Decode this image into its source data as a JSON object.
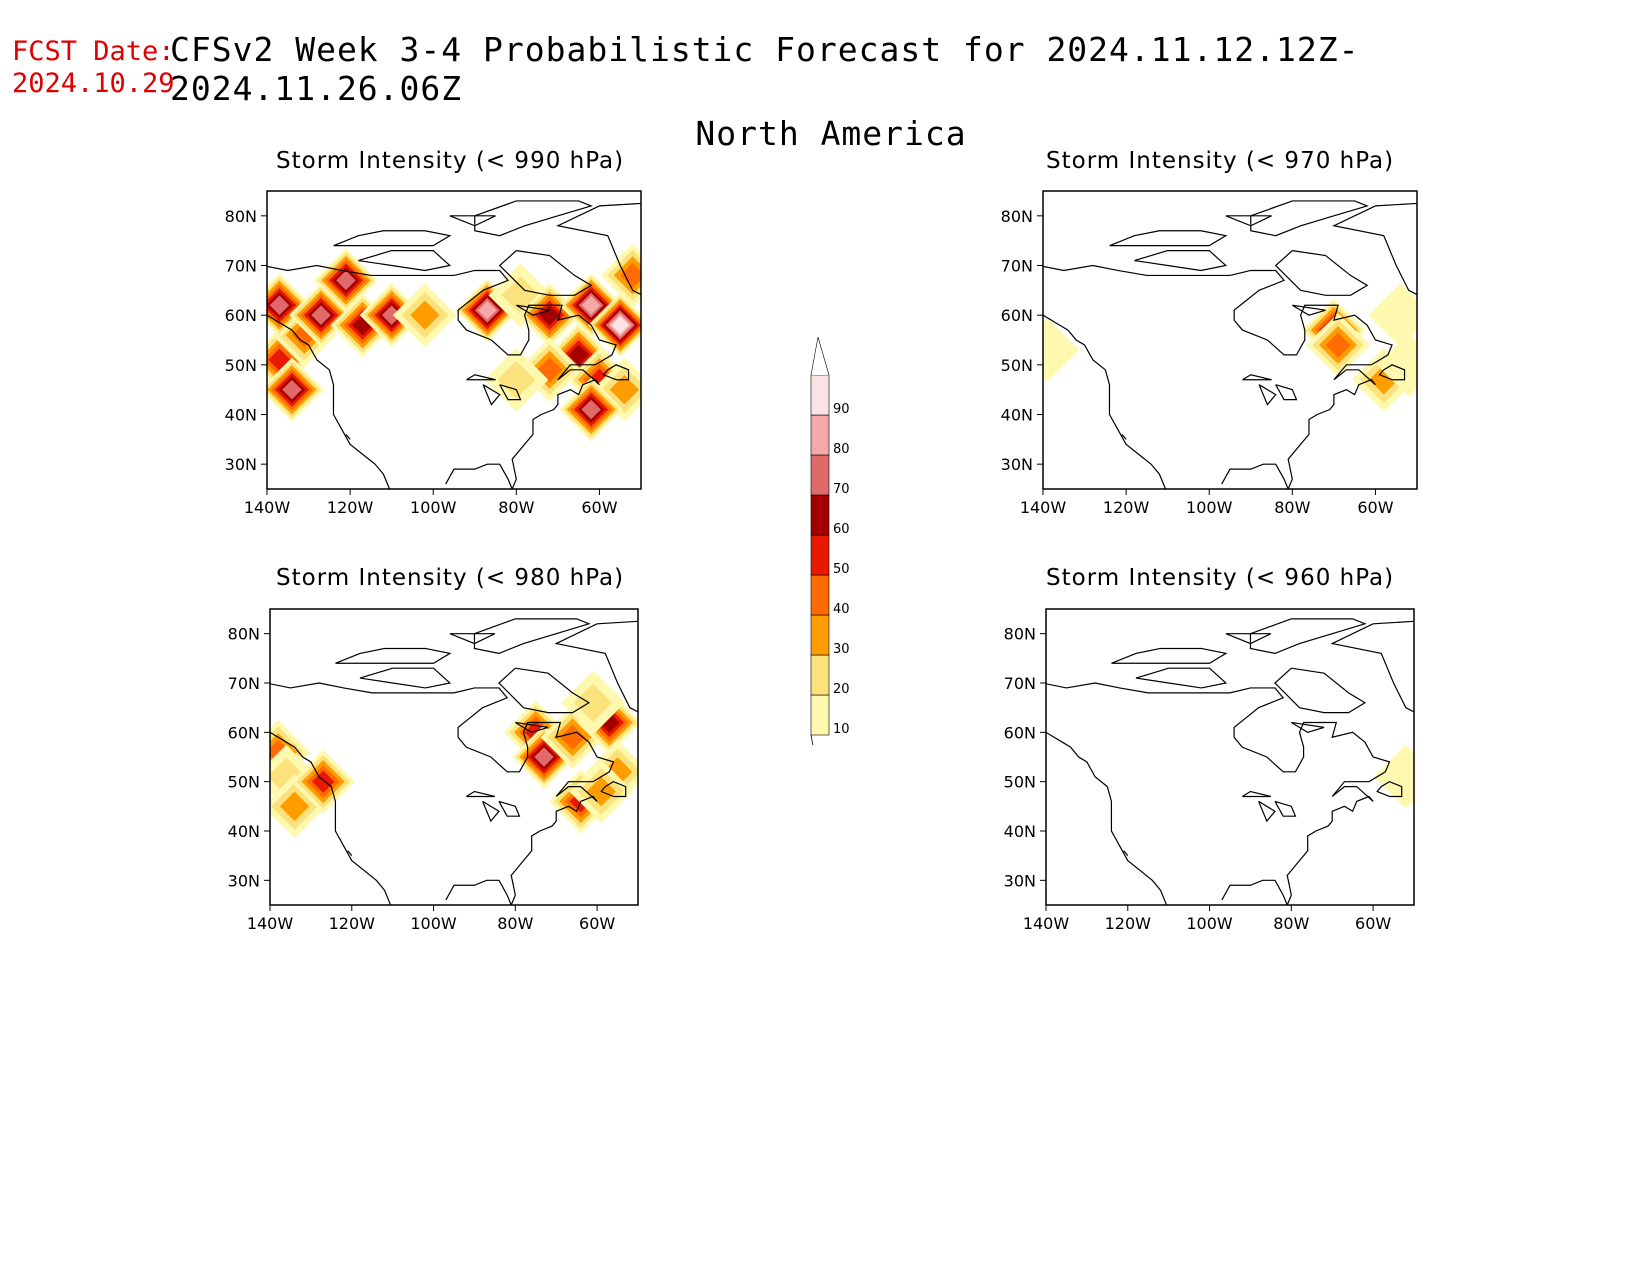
{
  "header": {
    "fcst_label": "FCST Date:",
    "fcst_value": "2024.10.29",
    "title": "CFSv2 Week 3-4 Probabilistic Forecast for 2024.11.12.12Z-2024.11.26.06Z",
    "region": "North America"
  },
  "panels": [
    {
      "title": "Storm Intensity (< 990 hPa)",
      "lat_ticks": [
        "80N",
        "70N",
        "60N",
        "50N",
        "40N",
        "30N"
      ],
      "lon_ticks": [
        "140W",
        "120W",
        "100W",
        "80W",
        "60W"
      ],
      "blobs": [
        {
          "lon": -137,
          "lat": 51,
          "p": 55
        },
        {
          "lon": -134,
          "lat": 45,
          "p": 75
        },
        {
          "lon": -131,
          "lat": 56,
          "p": 45
        },
        {
          "lon": -137,
          "lat": 62,
          "p": 70
        },
        {
          "lon": -127,
          "lat": 60,
          "p": 75
        },
        {
          "lon": -121,
          "lat": 67,
          "p": 75
        },
        {
          "lon": -117,
          "lat": 58,
          "p": 65
        },
        {
          "lon": -110,
          "lat": 60,
          "p": 70
        },
        {
          "lon": -102,
          "lat": 60,
          "p": 30
        },
        {
          "lon": -87,
          "lat": 61,
          "p": 80
        },
        {
          "lon": -79,
          "lat": 64,
          "p": 25
        },
        {
          "lon": -72,
          "lat": 60,
          "p": 60
        },
        {
          "lon": -62,
          "lat": 62,
          "p": 85
        },
        {
          "lon": -55,
          "lat": 58,
          "p": 90
        },
        {
          "lon": -65,
          "lat": 52,
          "p": 60
        },
        {
          "lon": -72,
          "lat": 49,
          "p": 45
        },
        {
          "lon": -60,
          "lat": 47,
          "p": 55
        },
        {
          "lon": -54,
          "lat": 45,
          "p": 35
        },
        {
          "lon": -62,
          "lat": 41,
          "p": 70
        },
        {
          "lon": -80,
          "lat": 47,
          "p": 25
        },
        {
          "lon": -52,
          "lat": 68,
          "p": 40
        }
      ]
    },
    {
      "title": "Storm Intensity (< 970 hPa)",
      "lat_ticks": [
        "80N",
        "70N",
        "60N",
        "50N",
        "40N",
        "30N"
      ],
      "lon_ticks": [
        "140W",
        "120W",
        "100W",
        "80W",
        "60W"
      ],
      "blobs": [
        {
          "lon": -70,
          "lat": 57,
          "p": 60
        },
        {
          "lon": -69,
          "lat": 54,
          "p": 45
        },
        {
          "lon": -58,
          "lat": 47,
          "p": 30
        },
        {
          "lon": -54,
          "lat": 60,
          "p": 15
        },
        {
          "lon": -52,
          "lat": 50,
          "p": 12
        },
        {
          "lon": -139,
          "lat": 53,
          "p": 10
        }
      ]
    },
    {
      "title": "Storm Intensity (< 980 hPa)",
      "lat_ticks": [
        "80N",
        "70N",
        "60N",
        "50N",
        "40N",
        "30N"
      ],
      "lon_ticks": [
        "140W",
        "120W",
        "100W",
        "80W",
        "60W"
      ],
      "blobs": [
        {
          "lon": -138,
          "lat": 56,
          "p": 45
        },
        {
          "lon": -136,
          "lat": 51,
          "p": 20
        },
        {
          "lon": -134,
          "lat": 45,
          "p": 30
        },
        {
          "lon": -127,
          "lat": 50,
          "p": 55
        },
        {
          "lon": -75,
          "lat": 60,
          "p": 55
        },
        {
          "lon": -73,
          "lat": 55,
          "p": 75
        },
        {
          "lon": -66,
          "lat": 59,
          "p": 45
        },
        {
          "lon": -57,
          "lat": 62,
          "p": 65
        },
        {
          "lon": -55,
          "lat": 52,
          "p": 35
        },
        {
          "lon": -64,
          "lat": 46,
          "p": 55
        },
        {
          "lon": -59,
          "lat": 48,
          "p": 30
        },
        {
          "lon": -61,
          "lat": 66,
          "p": 20
        }
      ]
    },
    {
      "title": "Storm Intensity (< 960 hPa)",
      "lat_ticks": [
        "80N",
        "70N",
        "60N",
        "50N",
        "40N",
        "30N"
      ],
      "lon_ticks": [
        "140W",
        "120W",
        "100W",
        "80W",
        "60W"
      ],
      "blobs": [
        {
          "lon": -52,
          "lat": 51,
          "p": 12
        }
      ]
    }
  ],
  "legend": {
    "levels": [
      "10",
      "20",
      "30",
      "40",
      "50",
      "60",
      "70",
      "80",
      "90"
    ],
    "colors": [
      "#fff9b0",
      "#fce27d",
      "#ff9d00",
      "#ff6b00",
      "#e81900",
      "#a50000",
      "#e06a6a",
      "#f4a8a8",
      "#fde4e4"
    ]
  }
}
